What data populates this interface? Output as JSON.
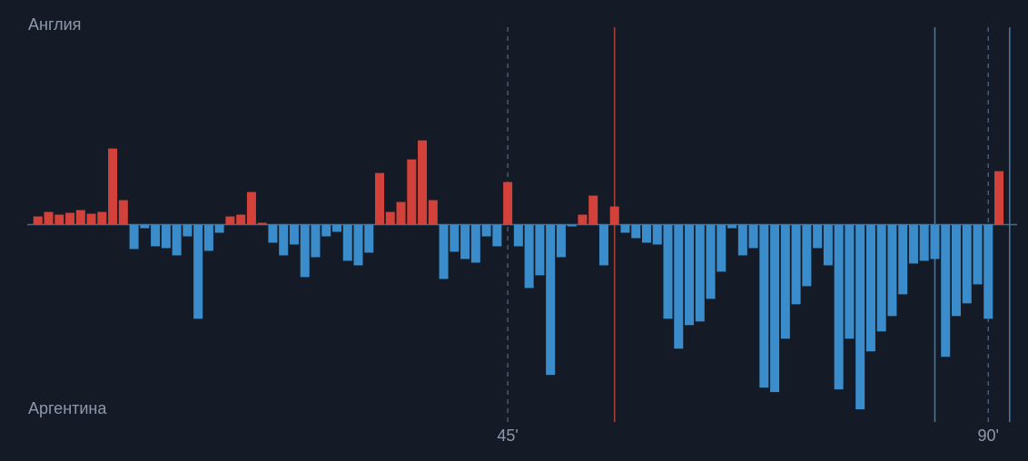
{
  "chart_data": {
    "type": "momentum-bar",
    "series": [
      {
        "name": "Англия",
        "color": "#d3423a"
      },
      {
        "name": "Аргентина",
        "color": "#3a8ccb"
      }
    ],
    "values": [
      9,
      14,
      11,
      13,
      16,
      12,
      14,
      84,
      27,
      -27,
      -4,
      -24,
      -26,
      -34,
      -13,
      -104,
      -29,
      -9,
      9,
      11,
      36,
      2,
      -20,
      -34,
      -22,
      -58,
      -36,
      -13,
      -8,
      -40,
      -45,
      -31,
      57,
      14,
      25,
      72,
      93,
      27,
      -60,
      -30,
      -38,
      -42,
      -13,
      -24,
      47,
      -24,
      -70,
      -56,
      -166,
      -36,
      -2,
      11,
      32,
      -45,
      20,
      -9,
      -15,
      -20,
      -22,
      -104,
      -137,
      -111,
      -107,
      -82,
      -52,
      -4,
      -34,
      -26,
      -180,
      -185,
      -126,
      -88,
      -68,
      -26,
      -45,
      -182,
      -126,
      -204,
      -140,
      -118,
      -101,
      -77,
      -43,
      -40,
      -38,
      -146,
      -101,
      -87,
      -66,
      -104,
      59
    ],
    "xlim": [
      0,
      92.7
    ],
    "ylim": [
      -218,
      218
    ],
    "xticks": [
      {
        "value": 45,
        "label": "45'"
      },
      {
        "value": 90,
        "label": "90'"
      }
    ],
    "markers": [
      {
        "x": 55,
        "color": "#a5423a"
      },
      {
        "x": 85,
        "color": "#3a7fb5"
      },
      {
        "x": 92,
        "color": "#3a7fb5"
      }
    ]
  }
}
